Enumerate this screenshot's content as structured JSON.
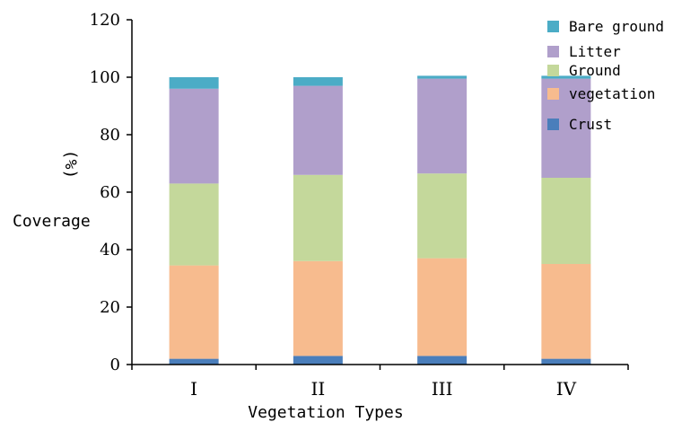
{
  "chart_data": {
    "type": "bar",
    "stacked": true,
    "categories": [
      "I",
      "II",
      "III",
      "IV"
    ],
    "series": [
      {
        "name": "Crust",
        "color": "#4a7ebb",
        "values": [
          2,
          3,
          3,
          2
        ]
      },
      {
        "name": "vegetation",
        "color": "#f7bb8e",
        "values": [
          32.5,
          33,
          34,
          33
        ]
      },
      {
        "name": "Ground",
        "color": "#c4d89b",
        "values": [
          28.5,
          30,
          29.5,
          30
        ]
      },
      {
        "name": "Litter",
        "color": "#b09fcb",
        "values": [
          33,
          31,
          33,
          34.5
        ]
      },
      {
        "name": "Bare ground",
        "color": "#4bacc6",
        "values": [
          4,
          3,
          1,
          1
        ]
      }
    ],
    "legend_display": [
      "Bare ground",
      "Litter",
      "Ground",
      "vegetation",
      "Crust"
    ],
    "xlabel": "Vegetation Types",
    "ylabel": "Coverage",
    "ylabel_unit": "(%)",
    "ylim": [
      0,
      120
    ],
    "yticks": [
      0,
      20,
      40,
      60,
      80,
      100,
      120
    ],
    "grid": false,
    "legend_position": "top-right"
  }
}
